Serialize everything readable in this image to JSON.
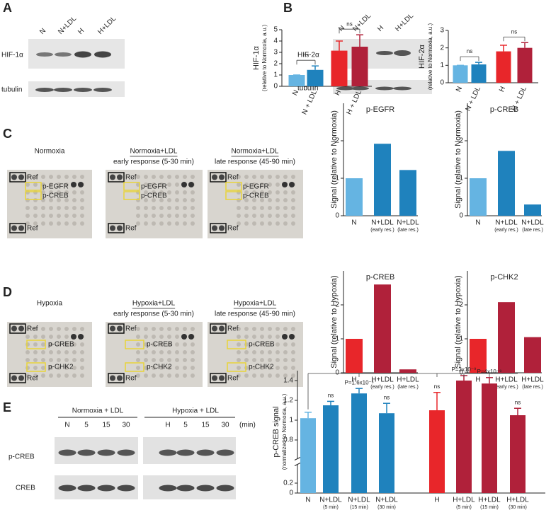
{
  "panels": {
    "letters": [
      "A",
      "B",
      "C",
      "D",
      "E"
    ]
  },
  "blots": {
    "A": {
      "lanes": [
        "N",
        "N+LDL",
        "H",
        "H+LDL"
      ],
      "rows": [
        "HIF-1α",
        "tubulin"
      ]
    },
    "B": {
      "lanes": [
        "N",
        "N+LDL",
        "H",
        "H+LDL"
      ],
      "rows": [
        "HIF-2α",
        "tubulin"
      ]
    },
    "E": {
      "groups": [
        "Normoxia + LDL",
        "Hypoxia + LDL"
      ],
      "lanes": [
        "N",
        "5",
        "15",
        "30",
        "H",
        "5",
        "15",
        "30"
      ],
      "unit": "(min)",
      "rows": [
        "p-CREB",
        "CREB"
      ]
    }
  },
  "arrays": {
    "C": {
      "images": [
        {
          "title": "Normoxia"
        },
        {
          "title": "Normoxia+LDL",
          "subtitle": "early response (5-30 min)"
        },
        {
          "title": "Normoxia+LDL",
          "subtitle": "late response (45-90 min)"
        }
      ],
      "labels": [
        "Ref",
        "p-EGFR",
        "p-CREB",
        "Ref"
      ]
    },
    "D": {
      "images": [
        {
          "title": "Hypoxia"
        },
        {
          "title": "Hypoxia+LDL",
          "subtitle": "early response (5-30 min)"
        },
        {
          "title": "Hypoxia+LDL",
          "subtitle": "late response (45-90 min)"
        }
      ],
      "labels": [
        "Ref",
        "p-CREB",
        "p-CHK2",
        "Ref"
      ]
    }
  },
  "chart_data": [
    {
      "type": "bar",
      "ylabel": "HIF-1α",
      "ylabel_note": "(relative to Normoxia, a.u.)",
      "categories": [
        "N",
        "N + LDL",
        "H",
        "H + LDL"
      ],
      "values": [
        1,
        1.45,
        3.15,
        3.5
      ],
      "errors": [
        0,
        0.35,
        0.85,
        1.05
      ],
      "colors": [
        "#65b4e2",
        "#1f82bd",
        "#e8262a",
        "#b0213a"
      ],
      "ylim": [
        0,
        5
      ],
      "yticks": [
        0,
        1,
        2,
        3,
        4,
        5
      ],
      "annotations": [
        "ns",
        "ns"
      ]
    },
    {
      "type": "bar",
      "ylabel": "HIF-2α",
      "ylabel_note": "(relative to Normoxia, a.u.)",
      "categories": [
        "N",
        "N + LDL",
        "H",
        "H + LDL"
      ],
      "values": [
        1,
        1.05,
        1.8,
        2.0
      ],
      "errors": [
        0,
        0.12,
        0.35,
        0.3
      ],
      "colors": [
        "#65b4e2",
        "#1f82bd",
        "#e8262a",
        "#b0213a"
      ],
      "ylim": [
        0,
        3
      ],
      "yticks": [
        0,
        1,
        2,
        3
      ],
      "annotations": [
        "ns",
        "ns"
      ]
    },
    {
      "type": "bar",
      "title": "p-EGFR",
      "ylabel": "Signal (relative to Normoxia)",
      "categories": [
        "N",
        "N+LDL",
        "N+LDL"
      ],
      "category_notes": [
        null,
        "(early res.)",
        "(late res.)"
      ],
      "values": [
        1,
        1.92,
        1.22
      ],
      "colors": [
        "#65b4e2",
        "#1f82bd",
        "#1f82bd"
      ],
      "ylim": [
        0,
        3
      ],
      "yticks": [
        0,
        1,
        2
      ]
    },
    {
      "type": "bar",
      "title": "p-CREB",
      "ylabel": "Signal (relative to Normoxia)",
      "categories": [
        "N",
        "N+LDL",
        "N+LDL"
      ],
      "category_notes": [
        null,
        "(early res.)",
        "(late res.)"
      ],
      "values": [
        1,
        1.73,
        0.3
      ],
      "colors": [
        "#65b4e2",
        "#1f82bd",
        "#1f82bd"
      ],
      "ylim": [
        0,
        3
      ],
      "yticks": [
        0,
        1,
        2
      ]
    },
    {
      "type": "bar",
      "title": "p-CREB",
      "ylabel": "Signal (relative to Hypoxia)",
      "categories": [
        "H",
        "H+LDL",
        "H+LDL"
      ],
      "category_notes": [
        null,
        "(early res.)",
        "(late res.)"
      ],
      "values": [
        1,
        2.6,
        0.1
      ],
      "colors": [
        "#e8262a",
        "#b0213a",
        "#b0213a"
      ],
      "ylim": [
        0,
        3
      ],
      "yticks": [
        0,
        1,
        2
      ]
    },
    {
      "type": "bar",
      "title": "p-CHK2",
      "ylabel": "Signal (relative to Hypoxia)",
      "categories": [
        "H",
        "H+LDL",
        "H+LDL"
      ],
      "category_notes": [
        null,
        "(early res.)",
        "(late res.)"
      ],
      "values": [
        1,
        2.08,
        1.05
      ],
      "colors": [
        "#e8262a",
        "#b0213a",
        "#b0213a"
      ],
      "ylim": [
        0,
        3
      ],
      "yticks": [
        0,
        1,
        2
      ]
    },
    {
      "type": "bar",
      "ylabel": "p-CREB signal",
      "ylabel_note": "(normalized to Normoxia, a.u.)",
      "categories": [
        "N",
        "N+LDL",
        "N+LDL",
        "N+LDL",
        "H",
        "H+LDL",
        "H+LDL",
        "H+LDL"
      ],
      "category_notes": [
        null,
        "(5 min)",
        "(15 min)",
        "(30 min)",
        null,
        "(5 min)",
        "(15 min)",
        "(30 min)"
      ],
      "values": [
        1.02,
        1.15,
        1.27,
        1.07,
        1.1,
        1.4,
        1.37,
        1.05
      ],
      "errors": [
        0.06,
        0.04,
        0.05,
        0.1,
        0.18,
        0.05,
        0.06,
        0.07
      ],
      "colors": [
        "#65b4e2",
        "#1f82bd",
        "#1f82bd",
        "#1f82bd",
        "#e8262a",
        "#b0213a",
        "#b0213a",
        "#b0213a"
      ],
      "ylim": [
        0,
        1.5
      ],
      "yticks": [
        0,
        0.2,
        0.8,
        1,
        1.2,
        1.4
      ],
      "ybreak": [
        0.2,
        0.8
      ],
      "bar_labels": [
        null,
        "ns",
        "P=1.6x10⁻³",
        "ns",
        "ns",
        "P=3x10⁻⁹",
        "P=4x10⁻⁹",
        "ns"
      ]
    }
  ]
}
